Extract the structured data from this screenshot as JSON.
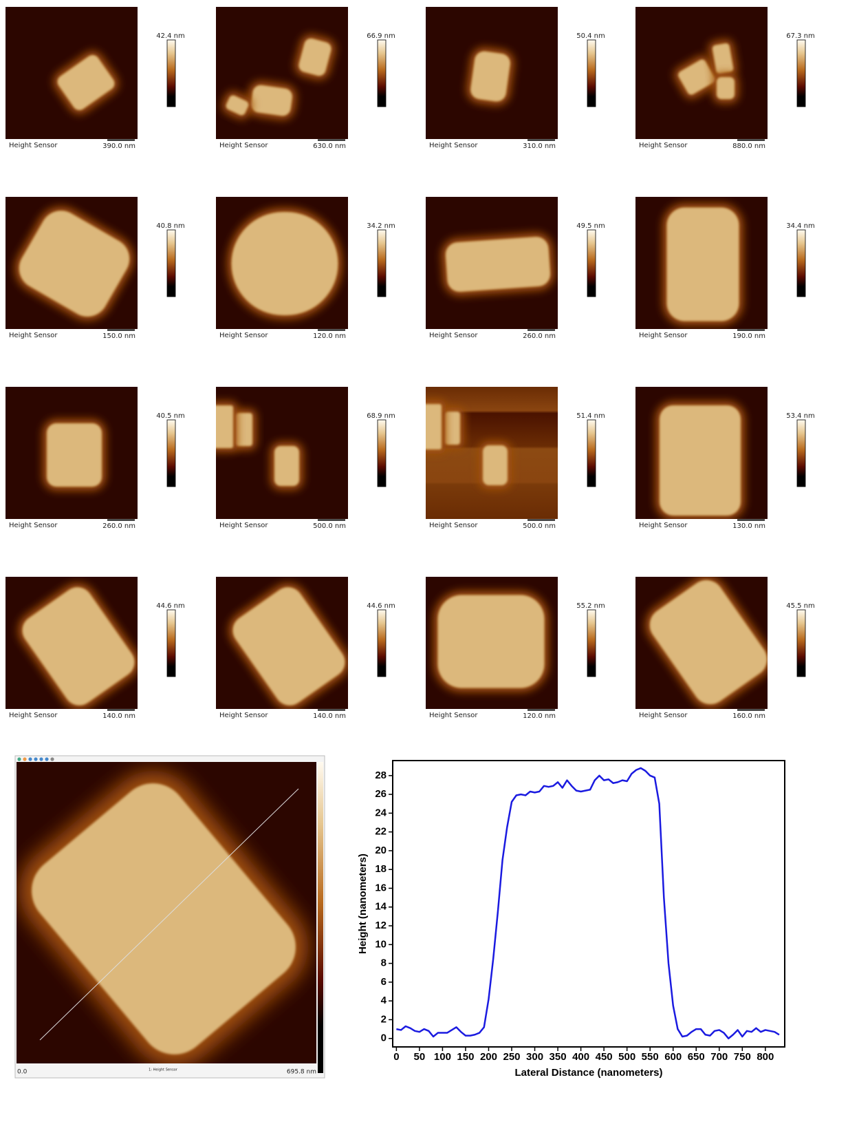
{
  "panels": [
    {
      "label": "Height Sensor",
      "scale_bar": "390.0 nm",
      "colorbar_max": "42.4 nm"
    },
    {
      "label": "Height Sensor",
      "scale_bar": "630.0 nm",
      "colorbar_max": "66.9 nm"
    },
    {
      "label": "Height Sensor",
      "scale_bar": "310.0 nm",
      "colorbar_max": "50.4 nm"
    },
    {
      "label": "Height Sensor",
      "scale_bar": "880.0 nm",
      "colorbar_max": "67.3 nm"
    },
    {
      "label": "Height Sensor",
      "scale_bar": "150.0 nm",
      "colorbar_max": "40.8 nm"
    },
    {
      "label": "Height Sensor",
      "scale_bar": "120.0 nm",
      "colorbar_max": "34.2 nm"
    },
    {
      "label": "Height Sensor",
      "scale_bar": "260.0 nm",
      "colorbar_max": "49.5 nm"
    },
    {
      "label": "Height Sensor",
      "scale_bar": "190.0 nm",
      "colorbar_max": "34.4 nm"
    },
    {
      "label": "Height Sensor",
      "scale_bar": "260.0 nm",
      "colorbar_max": "40.5 nm"
    },
    {
      "label": "Height Sensor",
      "scale_bar": "500.0 nm",
      "colorbar_max": "68.9 nm"
    },
    {
      "label": "Height Sensor",
      "scale_bar": "500.0 nm",
      "colorbar_max": "51.4 nm"
    },
    {
      "label": "Height Sensor",
      "scale_bar": "130.0 nm",
      "colorbar_max": "53.4 nm"
    },
    {
      "label": "Height Sensor",
      "scale_bar": "140.0 nm",
      "colorbar_max": "44.6 nm"
    },
    {
      "label": "Height Sensor",
      "scale_bar": "140.0 nm",
      "colorbar_max": "44.6 nm"
    },
    {
      "label": "Height Sensor",
      "scale_bar": "120.0 nm",
      "colorbar_max": "55.2 nm"
    },
    {
      "label": "Height Sensor",
      "scale_bar": "160.0 nm",
      "colorbar_max": "45.5 nm"
    }
  ],
  "large_image": {
    "channel": "1: Height Sensor",
    "axis_start": "0.0",
    "axis_end": "695.8 nm"
  },
  "chart_data": {
    "type": "line",
    "xlabel": "Lateral Distance (nanometers)",
    "ylabel": "Height (nanometers)",
    "xlim": [
      -8,
      842
    ],
    "ylim": [
      -0.9,
      29.6
    ],
    "xticks": [
      0,
      50,
      100,
      150,
      200,
      250,
      300,
      350,
      400,
      450,
      500,
      550,
      600,
      650,
      700,
      750,
      800
    ],
    "yticks": [
      0,
      2,
      4,
      6,
      8,
      10,
      12,
      14,
      16,
      18,
      20,
      22,
      24,
      26,
      28
    ],
    "series": [
      {
        "color": "#1a1ae0",
        "x": [
          0,
          10,
          20,
          30,
          40,
          50,
          60,
          70,
          80,
          90,
          100,
          110,
          120,
          130,
          140,
          150,
          160,
          170,
          180,
          190,
          200,
          210,
          220,
          230,
          240,
          250,
          260,
          270,
          280,
          290,
          300,
          310,
          320,
          330,
          340,
          350,
          360,
          370,
          380,
          390,
          400,
          410,
          420,
          430,
          440,
          450,
          460,
          470,
          480,
          490,
          500,
          510,
          520,
          530,
          540,
          550,
          560,
          570,
          580,
          590,
          600,
          610,
          620,
          630,
          640,
          650,
          660,
          670,
          680,
          690,
          700,
          710,
          720,
          730,
          740,
          750,
          760,
          770,
          780,
          790,
          800,
          810,
          820,
          830
        ],
        "values": [
          1.0,
          0.9,
          1.3,
          1.1,
          0.8,
          0.7,
          1.0,
          0.8,
          0.2,
          0.6,
          0.6,
          0.6,
          0.9,
          1.2,
          0.7,
          0.3,
          0.3,
          0.4,
          0.6,
          1.2,
          4.2,
          8.5,
          13.5,
          19.0,
          22.5,
          25.2,
          25.9,
          26.0,
          25.9,
          26.3,
          26.2,
          26.3,
          26.9,
          26.8,
          26.9,
          27.3,
          26.7,
          27.5,
          26.9,
          26.4,
          26.3,
          26.4,
          26.5,
          27.5,
          28.0,
          27.5,
          27.6,
          27.2,
          27.3,
          27.5,
          27.4,
          28.2,
          28.6,
          28.8,
          28.5,
          28.0,
          27.8,
          25.0,
          15.0,
          8.0,
          3.5,
          1.0,
          0.2,
          0.3,
          0.7,
          1.0,
          1.0,
          0.4,
          0.3,
          0.8,
          0.9,
          0.6,
          0.0,
          0.4,
          0.9,
          0.2,
          0.8,
          0.7,
          1.1,
          0.7,
          0.9,
          0.8,
          0.7,
          0.4
        ]
      }
    ]
  }
}
